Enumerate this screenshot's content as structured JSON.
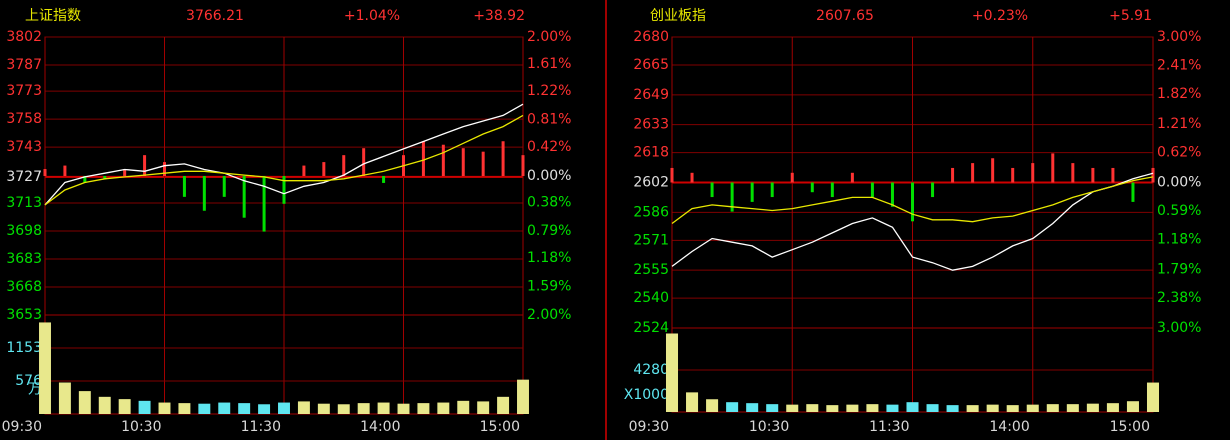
{
  "chart_data": [
    {
      "type": "intraday",
      "title": "上证指数",
      "price": "3766.21",
      "change_pct": "+1.04%",
      "change": "+38.92",
      "x": [
        0,
        10,
        20,
        30,
        40,
        50,
        60,
        70,
        80,
        90,
        100,
        110,
        120,
        130,
        140,
        150,
        160,
        170,
        180,
        190,
        200,
        210,
        220,
        230,
        240
      ],
      "xlim": [
        0,
        240
      ],
      "xticks": [
        {
          "value": 0,
          "label": "09:30"
        },
        {
          "value": 60,
          "label": "10:30"
        },
        {
          "value": 120,
          "label": "11:30"
        },
        {
          "value": 180,
          "label": "14:00"
        },
        {
          "value": 240,
          "label": "15:00"
        }
      ],
      "ylim": [
        3653,
        3802
      ],
      "yticks": [
        3802,
        3787,
        3773,
        3758,
        3743,
        3727,
        3713,
        3698,
        3683,
        3668,
        3653
      ],
      "y2lim": [
        -2,
        2
      ],
      "y2ticks": [
        {
          "value": 2,
          "label": "2.00%"
        },
        {
          "value": 1.61,
          "label": "1.61%"
        },
        {
          "value": 1.22,
          "label": "1.22%"
        },
        {
          "value": 0.81,
          "label": "0.81%"
        },
        {
          "value": 0.42,
          "label": "0.42%"
        },
        {
          "value": 0,
          "label": "0.00%"
        },
        {
          "value": -0.38,
          "label": "0.38%"
        },
        {
          "value": -0.79,
          "label": "0.79%"
        },
        {
          "value": -1.18,
          "label": "1.18%"
        },
        {
          "value": -1.59,
          "label": "1.59%"
        },
        {
          "value": -2,
          "label": "2.00%"
        }
      ],
      "series": [
        {
          "color": "#ffffff",
          "values": [
            3712,
            3724,
            3727,
            3729,
            3731,
            3730,
            3733,
            3734,
            3731,
            3729,
            3725,
            3722,
            3718,
            3722,
            3724,
            3728,
            3734,
            3738,
            3742,
            3746,
            3750,
            3754,
            3757,
            3760,
            3766
          ]
        },
        {
          "color": "#e8e800",
          "values": [
            3712,
            3720,
            3724,
            3726,
            3727,
            3728,
            3729,
            3730,
            3730,
            3729,
            3728,
            3727,
            3725,
            3725,
            3725,
            3726,
            3728,
            3730,
            3733,
            3736,
            3740,
            3745,
            3750,
            3754,
            3760
          ]
        },
        {
          "axis": "y2",
          "colors": [
            "#ff3232",
            "#00e000"
          ],
          "values": [
            0.1,
            0.15,
            -0.1,
            -0.05,
            0.1,
            0.3,
            0.2,
            -0.3,
            -0.5,
            -0.3,
            -0.6,
            -0.8,
            -0.4,
            0.15,
            0.2,
            0.3,
            0.4,
            -0.1,
            0.3,
            0.5,
            0.45,
            0.4,
            0.35,
            0.5,
            0.3
          ]
        }
      ],
      "volume": {
        "colors": [
          "#e8e88c",
          "#5fe6f0"
        ],
        "unit": "万",
        "ylim": [
          0,
          1730
        ],
        "yticks": [
          1153,
          576
        ],
        "values": [
          1600,
          550,
          400,
          300,
          260,
          230,
          200,
          190,
          180,
          200,
          190,
          170,
          200,
          220,
          180,
          170,
          190,
          200,
          180,
          190,
          200,
          230,
          220,
          300,
          600
        ]
      }
    },
    {
      "type": "intraday",
      "title": "创业板指",
      "price": "2607.65",
      "change_pct": "+0.23%",
      "change": "+5.91",
      "x": [
        0,
        10,
        20,
        30,
        40,
        50,
        60,
        70,
        80,
        90,
        100,
        110,
        120,
        130,
        140,
        150,
        160,
        170,
        180,
        190,
        200,
        210,
        220,
        230,
        240
      ],
      "xlim": [
        0,
        240
      ],
      "xticks": [
        {
          "value": 0,
          "label": "09:30"
        },
        {
          "value": 60,
          "label": "10:30"
        },
        {
          "value": 120,
          "label": "11:30"
        },
        {
          "value": 180,
          "label": "14:00"
        },
        {
          "value": 240,
          "label": "15:00"
        }
      ],
      "ylim": [
        2524,
        2680
      ],
      "yticks": [
        2680,
        2665,
        2649,
        2633,
        2618,
        2602,
        2586,
        2571,
        2555,
        2540,
        2524
      ],
      "y2lim": [
        -3,
        3
      ],
      "y2ticks": [
        {
          "value": 3,
          "label": "3.00%"
        },
        {
          "value": 2.41,
          "label": "2.41%"
        },
        {
          "value": 1.82,
          "label": "1.82%"
        },
        {
          "value": 1.21,
          "label": "1.21%"
        },
        {
          "value": 0.62,
          "label": "0.62%"
        },
        {
          "value": 0,
          "label": "0.00%"
        },
        {
          "value": -0.59,
          "label": "0.59%"
        },
        {
          "value": -1.18,
          "label": "1.18%"
        },
        {
          "value": -1.79,
          "label": "1.79%"
        },
        {
          "value": -2.38,
          "label": "2.38%"
        },
        {
          "value": -3,
          "label": "3.00%"
        }
      ],
      "series": [
        {
          "color": "#ffffff",
          "values": [
            2557,
            2565,
            2572,
            2570,
            2568,
            2562,
            2566,
            2570,
            2575,
            2580,
            2583,
            2578,
            2562,
            2559,
            2555,
            2557,
            2562,
            2568,
            2572,
            2580,
            2590,
            2597,
            2600,
            2604,
            2607
          ]
        },
        {
          "color": "#e8e800",
          "values": [
            2580,
            2588,
            2590,
            2589,
            2588,
            2587,
            2588,
            2590,
            2592,
            2594,
            2594,
            2590,
            2585,
            2582,
            2582,
            2581,
            2583,
            2584,
            2587,
            2590,
            2594,
            2597,
            2600,
            2603,
            2605
          ]
        },
        {
          "axis": "y2",
          "colors": [
            "#ff3232",
            "#00e000"
          ],
          "values": [
            0.3,
            0.2,
            -0.3,
            -0.6,
            -0.4,
            -0.3,
            0.2,
            -0.2,
            -0.3,
            0.2,
            -0.3,
            -0.5,
            -0.8,
            -0.3,
            0.3,
            0.4,
            0.5,
            0.3,
            0.4,
            0.6,
            0.4,
            0.3,
            0.3,
            -0.4,
            0.3
          ]
        }
      ],
      "volume": {
        "colors": [
          "#e8e88c",
          "#5fe6f0"
        ],
        "unit": "X1000",
        "ylim": [
          0,
          8560
        ],
        "yticks": [
          4280
        ],
        "values": [
          8000,
          2000,
          1300,
          1000,
          900,
          800,
          750,
          800,
          700,
          750,
          800,
          750,
          1000,
          800,
          700,
          700,
          750,
          700,
          750,
          800,
          800,
          850,
          900,
          1100,
          3000
        ]
      }
    }
  ]
}
